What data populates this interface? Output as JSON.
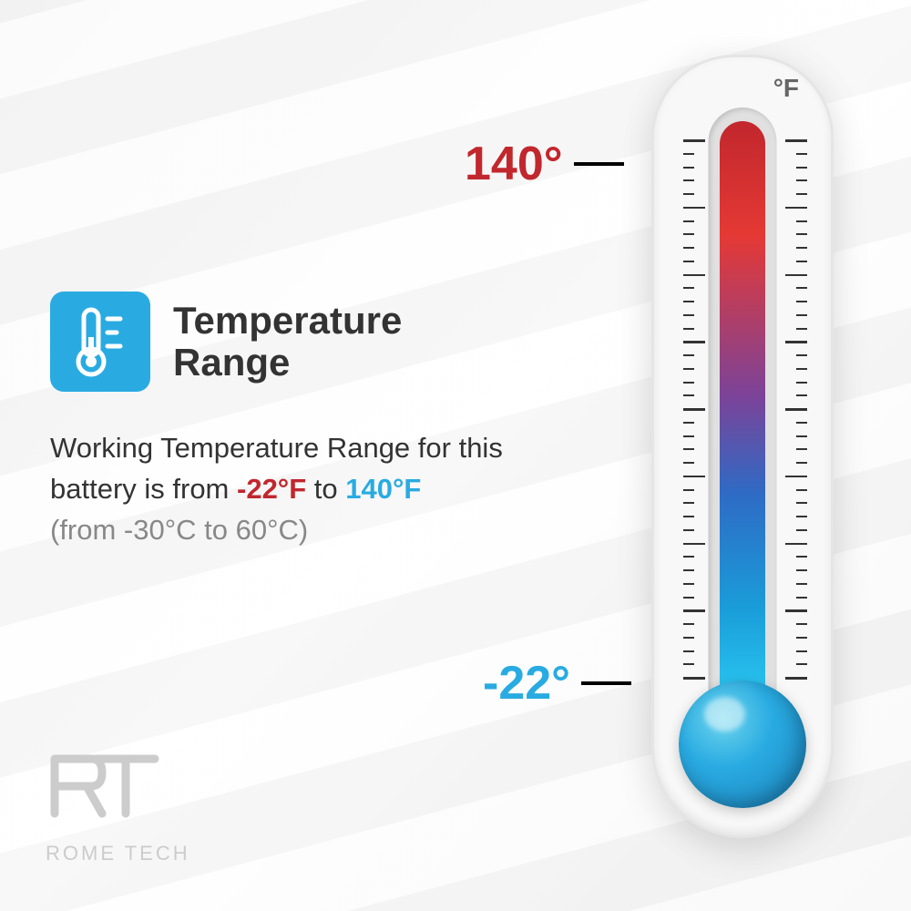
{
  "title": "Temperature\nRange",
  "description_prefix": "Working Temperature Range for this battery is from ",
  "temp_low_f": "-22°F",
  "desc_joiner": " to ",
  "temp_high_f": "140°F",
  "celsius_note": "(from -30°C to 60°C)",
  "unit_label": "°F",
  "high_marker": "140°",
  "low_marker": "-22°",
  "logo_brand": "ROME TECH",
  "colors": {
    "icon_bg": "#29abe2",
    "high_color": "#c1272d",
    "low_color": "#29abe2",
    "title_color": "#333333",
    "muted": "#888888",
    "gradient_top": "#c1272d",
    "gradient_bottom": "#29c5f0"
  },
  "thermometer": {
    "tick_major_count": 8,
    "tick_minor_per_major": 5
  }
}
